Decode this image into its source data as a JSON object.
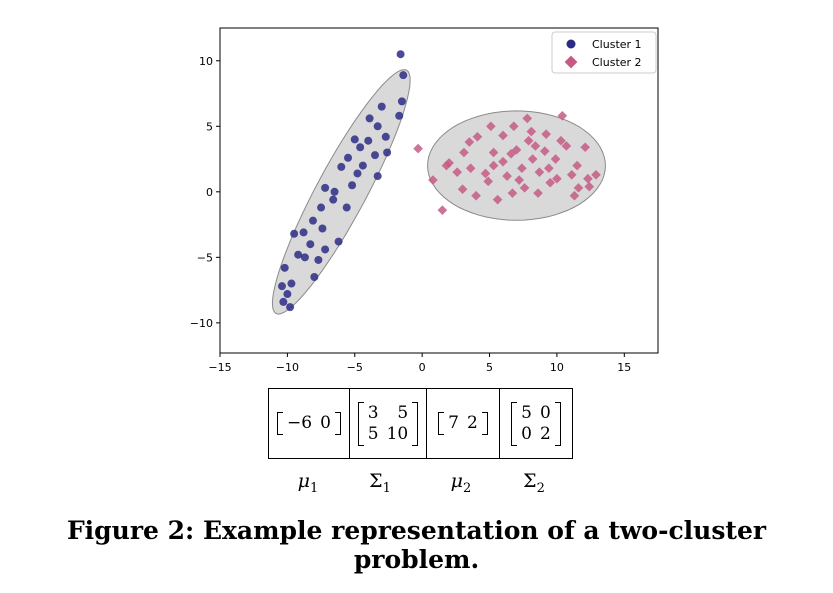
{
  "chart_data": {
    "type": "scatter",
    "xlim": [
      -15,
      17.5
    ],
    "ylim": [
      -12.3,
      12.5
    ],
    "x_ticks": [
      -15,
      -10,
      -5,
      0,
      5,
      10,
      15
    ],
    "y_ticks": [
      -10,
      -5,
      0,
      5,
      10
    ],
    "x_tick_labels": [
      "−15",
      "−10",
      "−5",
      "0",
      "5",
      "10",
      "15"
    ],
    "y_tick_labels": [
      "−10",
      "−5",
      "0",
      "5",
      "10"
    ],
    "grid": false,
    "legend_position": "top-right",
    "series": [
      {
        "name": "Cluster 1",
        "marker": "circle",
        "color": "#2b2b85",
        "mean": [
          -6,
          0
        ],
        "covariance": [
          [
            3,
            5
          ],
          [
            5,
            10
          ]
        ],
        "points": [
          [
            -1.6,
            10.5
          ],
          [
            -1.4,
            8.9
          ],
          [
            -1.5,
            6.9
          ],
          [
            -3.0,
            6.5
          ],
          [
            -1.7,
            5.8
          ],
          [
            -3.3,
            5.0
          ],
          [
            -2.7,
            4.2
          ],
          [
            -9.8,
            -8.8
          ],
          [
            -10.3,
            -8.4
          ],
          [
            -10.0,
            -7.8
          ],
          [
            -10.4,
            -7.2
          ],
          [
            -9.7,
            -7.0
          ],
          [
            -10.2,
            -5.8
          ],
          [
            -9.2,
            -4.8
          ],
          [
            -9.5,
            -3.2
          ],
          [
            -8.7,
            -5.0
          ],
          [
            -8.8,
            -3.1
          ],
          [
            -8.0,
            -6.5
          ],
          [
            -7.7,
            -5.2
          ],
          [
            -8.3,
            -4.0
          ],
          [
            -7.2,
            -4.4
          ],
          [
            -8.1,
            -2.2
          ],
          [
            -6.2,
            -3.8
          ],
          [
            -7.5,
            -1.2
          ],
          [
            -6.6,
            -0.6
          ],
          [
            -7.2,
            0.3
          ],
          [
            -5.6,
            -1.2
          ],
          [
            -5.2,
            0.5
          ],
          [
            -4.8,
            1.4
          ],
          [
            -6.0,
            1.9
          ],
          [
            -5.5,
            2.6
          ],
          [
            -4.6,
            3.4
          ],
          [
            -4.0,
            3.9
          ],
          [
            -4.4,
            2.0
          ],
          [
            -3.5,
            2.8
          ],
          [
            -5.0,
            4.0
          ],
          [
            -3.9,
            5.6
          ],
          [
            -2.6,
            3.0
          ],
          [
            -3.3,
            1.2
          ],
          [
            -6.5,
            0.0
          ],
          [
            -7.4,
            -2.8
          ]
        ]
      },
      {
        "name": "Cluster 2",
        "marker": "diamond",
        "color": "#c45a85",
        "mean": [
          7,
          2
        ],
        "covariance": [
          [
            5,
            0
          ],
          [
            0,
            2
          ]
        ],
        "points": [
          [
            -0.3,
            3.3
          ],
          [
            0.8,
            0.9
          ],
          [
            1.5,
            -1.4
          ],
          [
            2.0,
            2.2
          ],
          [
            1.8,
            2.0
          ],
          [
            2.6,
            1.5
          ],
          [
            3.6,
            1.8
          ],
          [
            3.5,
            3.8
          ],
          [
            3.0,
            0.2
          ],
          [
            4.1,
            4.2
          ],
          [
            4.0,
            -0.3
          ],
          [
            5.1,
            5.0
          ],
          [
            5.3,
            3.0
          ],
          [
            4.9,
            0.8
          ],
          [
            5.6,
            -0.6
          ],
          [
            6.0,
            4.3
          ],
          [
            6.0,
            2.3
          ],
          [
            6.7,
            -0.1
          ],
          [
            6.8,
            5.0
          ],
          [
            7.0,
            3.2
          ],
          [
            7.4,
            1.8
          ],
          [
            7.6,
            0.3
          ],
          [
            7.8,
            5.6
          ],
          [
            7.9,
            3.9
          ],
          [
            8.2,
            2.5
          ],
          [
            8.7,
            1.5
          ],
          [
            8.6,
            -0.1
          ],
          [
            9.1,
            3.1
          ],
          [
            9.2,
            4.4
          ],
          [
            9.5,
            0.7
          ],
          [
            9.9,
            2.5
          ],
          [
            10.4,
            5.8
          ],
          [
            10.0,
            1.0
          ],
          [
            10.7,
            3.5
          ],
          [
            11.1,
            1.3
          ],
          [
            11.5,
            2.0
          ],
          [
            11.6,
            0.3
          ],
          [
            11.3,
            -0.3
          ],
          [
            12.1,
            3.4
          ],
          [
            12.3,
            1.0
          ],
          [
            12.4,
            0.4
          ],
          [
            12.9,
            1.3
          ],
          [
            10.3,
            3.9
          ],
          [
            8.1,
            4.6
          ],
          [
            6.3,
            1.2
          ],
          [
            4.7,
            1.4
          ],
          [
            3.1,
            3.0
          ],
          [
            6.6,
            2.9
          ],
          [
            5.3,
            2.0
          ],
          [
            9.4,
            1.8
          ],
          [
            7.2,
            0.9
          ],
          [
            8.4,
            3.5
          ]
        ]
      }
    ]
  },
  "params": [
    {
      "name": "mu1",
      "kind": "vector",
      "rows": [
        [
          "−6",
          "0"
        ]
      ]
    },
    {
      "name": "sigma1",
      "kind": "matrix",
      "rows": [
        [
          "3",
          "5"
        ],
        [
          "5",
          "10"
        ]
      ]
    },
    {
      "name": "mu2",
      "kind": "vector",
      "rows": [
        [
          "7",
          "2"
        ]
      ]
    },
    {
      "name": "sigma2",
      "kind": "matrix",
      "rows": [
        [
          "5",
          "0"
        ],
        [
          "0",
          "2"
        ]
      ]
    }
  ],
  "param_labels": {
    "mu1": "μ",
    "mu1_sub": "1",
    "sigma1": "Σ",
    "sigma1_sub": "1",
    "mu2": "μ",
    "mu2_sub": "2",
    "sigma2": "Σ",
    "sigma2_sub": "2"
  },
  "caption": "Figure 2: Example representation of a two-cluster problem."
}
